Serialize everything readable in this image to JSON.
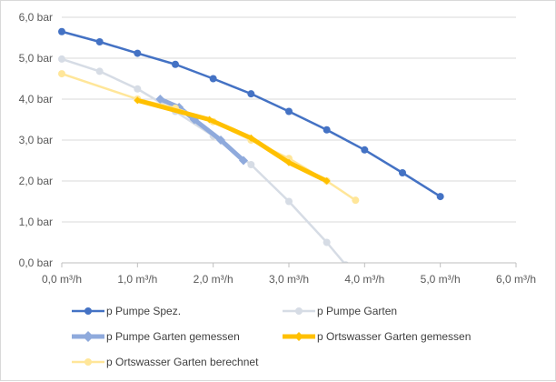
{
  "chart_data": {
    "type": "line",
    "title": "",
    "xlabel": "",
    "ylabel": "",
    "xlim": [
      0,
      6
    ],
    "ylim": [
      0,
      6
    ],
    "x_ticks": [
      0,
      1,
      2,
      3,
      4,
      5,
      6
    ],
    "y_ticks": [
      0,
      1,
      2,
      3,
      4,
      5,
      6
    ],
    "x_tick_labels": [
      "0,0 m³/h",
      "1,0 m³/h",
      "2,0 m³/h",
      "3,0 m³/h",
      "4,0 m³/h",
      "5,0 m³/h",
      "6,0 m³/h"
    ],
    "y_tick_labels": [
      "0,0 bar",
      "1,0 bar",
      "2,0 bar",
      "3,0 bar",
      "4,0 bar",
      "5,0 bar",
      "6,0 bar"
    ],
    "grid": "horizontal",
    "legend_position": "bottom",
    "series": [
      {
        "name": "p Pumpe Spez.",
        "color": "#4472c4",
        "points": [
          [
            0,
            5.65
          ],
          [
            0.5,
            5.4
          ],
          [
            1.0,
            5.12
          ],
          [
            1.5,
            4.85
          ],
          [
            2.0,
            4.5
          ],
          [
            2.5,
            4.13
          ],
          [
            3.0,
            3.7
          ],
          [
            3.5,
            3.25
          ],
          [
            4.0,
            2.76
          ],
          [
            4.5,
            2.2
          ],
          [
            5.0,
            1.62
          ]
        ]
      },
      {
        "name": "p Pumpe Garten",
        "color": "#d6dce5",
        "points": [
          [
            0,
            4.98
          ],
          [
            0.5,
            4.68
          ],
          [
            1.0,
            4.25
          ],
          [
            1.5,
            3.7
          ],
          [
            2.0,
            3.1
          ],
          [
            2.5,
            2.4
          ],
          [
            3.0,
            1.5
          ],
          [
            3.5,
            0.5
          ],
          [
            3.75,
            -0.05
          ]
        ]
      },
      {
        "name": "p Pumpe Garten gemessen",
        "color": "#8faadc",
        "points": [
          [
            1.3,
            4.0
          ],
          [
            1.55,
            3.8
          ],
          [
            1.75,
            3.5
          ],
          [
            2.1,
            3.0
          ],
          [
            2.4,
            2.5
          ]
        ]
      },
      {
        "name": "p Ortswasser Garten gemessen",
        "color": "#ffc000",
        "points": [
          [
            1.0,
            3.97
          ],
          [
            1.95,
            3.5
          ],
          [
            2.5,
            3.05
          ],
          [
            3.0,
            2.45
          ],
          [
            3.5,
            2.0
          ]
        ]
      },
      {
        "name": "p Ortswasser Garten berechnet",
        "color": "#ffe699",
        "points": [
          [
            0,
            4.62
          ],
          [
            1.0,
            4.0
          ],
          [
            1.5,
            3.78
          ],
          [
            2.0,
            3.45
          ],
          [
            2.5,
            3.0
          ],
          [
            3.0,
            2.55
          ],
          [
            3.5,
            2.0
          ],
          [
            3.88,
            1.53
          ]
        ]
      }
    ]
  }
}
